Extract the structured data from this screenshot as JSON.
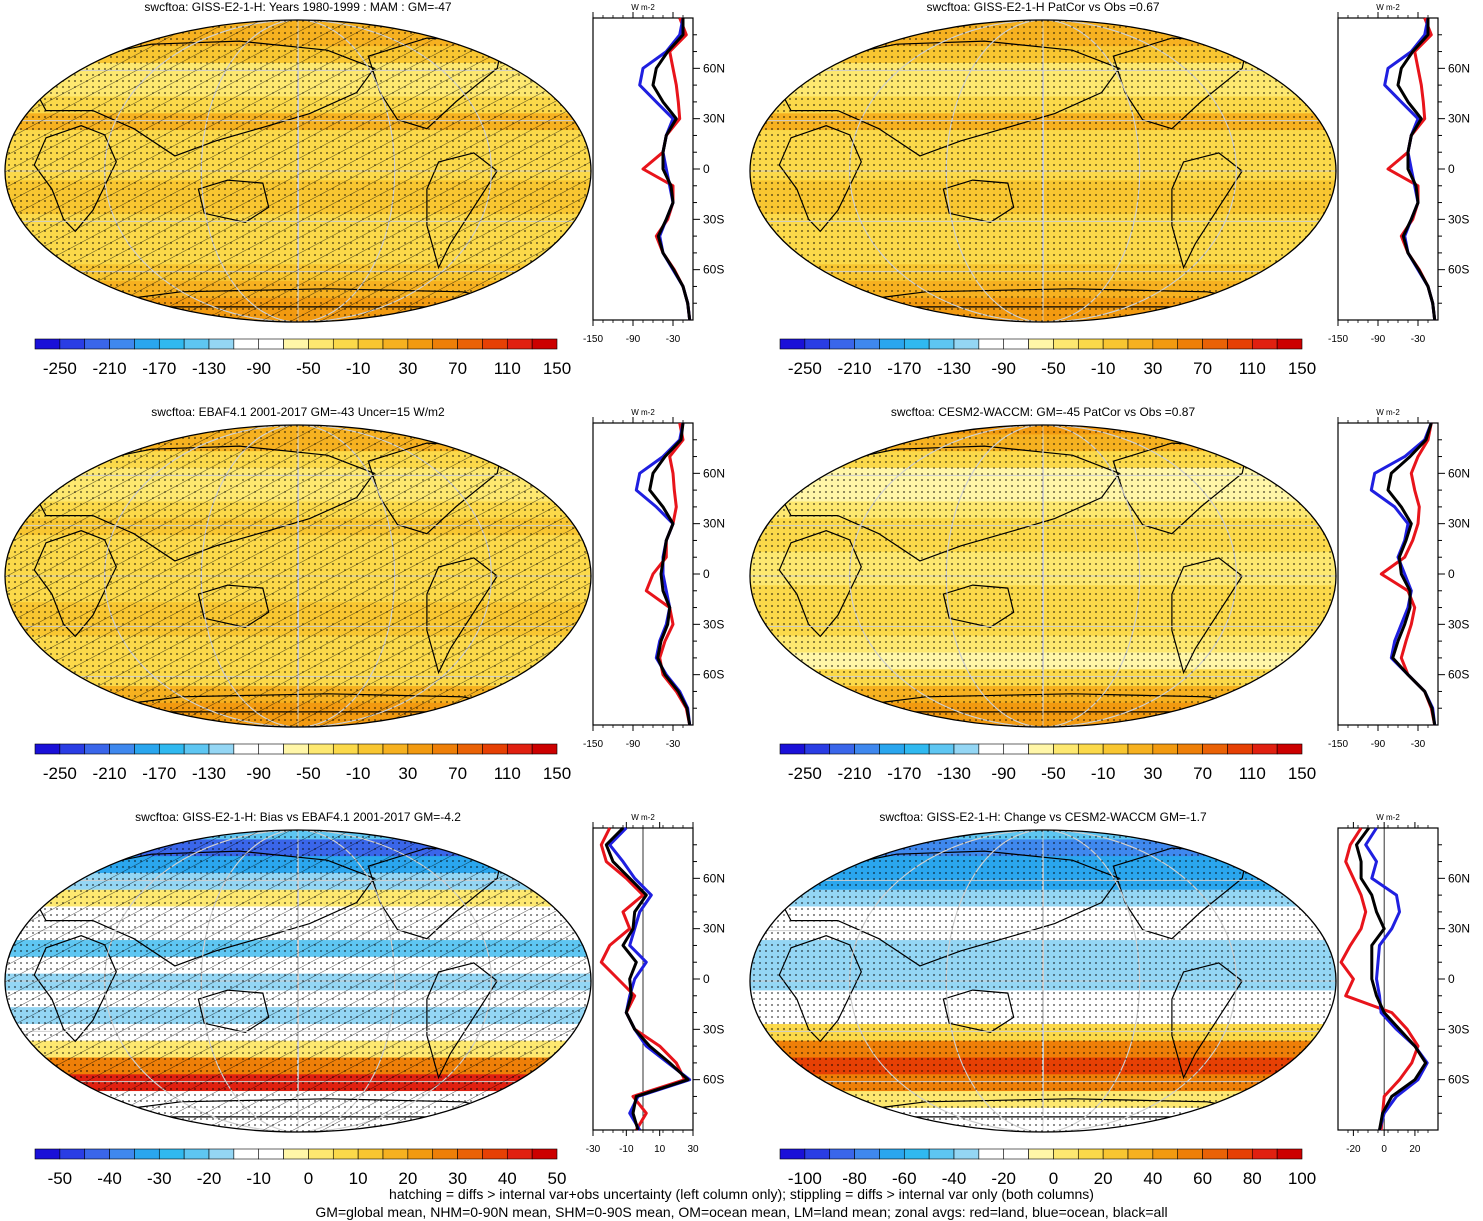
{
  "footer": {
    "line1": "hatching = diffs > internal var+obs uncertainty (left column only); stippling = diffs > internal var only (both columns)",
    "line2": "GM=global mean, NHM=0-90N mean, SHM=0-90S mean, OM=ocean mean, LM=land mean; zonal avgs: red=land, blue=ocean, black=all"
  },
  "colors": {
    "land": "#e8141b",
    "ocean": "#1f1fe0",
    "all": "#000000"
  },
  "chart_data": [
    {
      "type": "heatmap",
      "title": "swcftoa: GISS-E2-1-H: Years 1980-1999 : MAM : GM=-47",
      "hatched": true,
      "lat_ticks": [
        "60N",
        "30N",
        "0",
        "30S",
        "60S"
      ],
      "colorbar": {
        "labels": [
          "-250",
          "-210",
          "-170",
          "-130",
          "-90",
          "-50",
          "-10",
          "30",
          "70",
          "110",
          "150"
        ],
        "colors": [
          "#1a10d8",
          "#2a3de4",
          "#3a66ea",
          "#3f88ee",
          "#2aa6ee",
          "#30b9f0",
          "#5ec6f2",
          "#94d6f4",
          "#ffffff",
          "#ffffff",
          "#fff6a8",
          "#fde870",
          "#fbd94a",
          "#f8c631",
          "#f6b120",
          "#f29a10",
          "#ee7f08",
          "#ea6206",
          "#e64004",
          "#e02010",
          "#cc0000"
        ]
      },
      "zonal": {
        "unit": "W m-2",
        "x_ticks": [
          "-150",
          "-90",
          "-30"
        ],
        "xlim": [
          -150,
          0
        ],
        "lat": [
          -90,
          -80,
          -70,
          -60,
          -50,
          -40,
          -30,
          -20,
          -10,
          0,
          10,
          20,
          30,
          40,
          50,
          60,
          70,
          80,
          90
        ],
        "land": [
          -5,
          -8,
          -15,
          -28,
          -45,
          -55,
          -38,
          -30,
          -30,
          -75,
          -45,
          -40,
          -20,
          -22,
          -25,
          -30,
          -35,
          -10,
          -20
        ],
        "ocean": [
          -5,
          -8,
          -15,
          -30,
          -45,
          -50,
          -40,
          -30,
          -35,
          -40,
          -45,
          -40,
          -30,
          -55,
          -80,
          -75,
          -40,
          -20,
          -15
        ],
        "all": [
          -5,
          -8,
          -15,
          -29,
          -45,
          -52,
          -40,
          -30,
          -33,
          -45,
          -45,
          -40,
          -25,
          -45,
          -60,
          -55,
          -38,
          -15,
          -15
        ]
      }
    },
    {
      "type": "heatmap",
      "title": "swcftoa: GISS-E2-1-H PatCor vs Obs =0.67",
      "hatched": false,
      "lat_ticks": [
        "60N",
        "30N",
        "0",
        "30S",
        "60S"
      ],
      "colorbar": {
        "labels": [
          "-250",
          "-210",
          "-170",
          "-130",
          "-90",
          "-50",
          "-10",
          "30",
          "70",
          "110",
          "150"
        ],
        "colors": [
          "#1a10d8",
          "#2a3de4",
          "#3a66ea",
          "#3f88ee",
          "#2aa6ee",
          "#30b9f0",
          "#5ec6f2",
          "#94d6f4",
          "#ffffff",
          "#ffffff",
          "#fff6a8",
          "#fde870",
          "#fbd94a",
          "#f8c631",
          "#f6b120",
          "#f29a10",
          "#ee7f08",
          "#ea6206",
          "#e64004",
          "#e02010",
          "#cc0000"
        ]
      },
      "zonal": {
        "unit": "W m-2",
        "x_ticks": [
          "-150",
          "-90",
          "-30"
        ],
        "xlim": [
          -150,
          0
        ],
        "lat": [
          -90,
          -80,
          -70,
          -60,
          -50,
          -40,
          -30,
          -20,
          -10,
          0,
          10,
          20,
          30,
          40,
          50,
          60,
          70,
          80,
          90
        ],
        "land": [
          -5,
          -8,
          -15,
          -28,
          -45,
          -55,
          -38,
          -30,
          -30,
          -75,
          -45,
          -40,
          -20,
          -22,
          -25,
          -30,
          -35,
          -10,
          -20
        ],
        "ocean": [
          -5,
          -8,
          -15,
          -30,
          -45,
          -50,
          -40,
          -30,
          -35,
          -40,
          -45,
          -40,
          -30,
          -55,
          -80,
          -75,
          -40,
          -20,
          -15
        ],
        "all": [
          -5,
          -8,
          -15,
          -29,
          -45,
          -52,
          -40,
          -30,
          -33,
          -45,
          -45,
          -40,
          -25,
          -45,
          -60,
          -55,
          -38,
          -15,
          -15
        ]
      }
    },
    {
      "type": "heatmap",
      "title": "swcftoa: EBAF4.1 2001-2017 GM=-43 Uncer=15 W/m2",
      "hatched": true,
      "lat_ticks": [
        "60N",
        "30N",
        "0",
        "30S",
        "60S"
      ],
      "colorbar": {
        "labels": [
          "-250",
          "-210",
          "-170",
          "-130",
          "-90",
          "-50",
          "-10",
          "30",
          "70",
          "110",
          "150"
        ],
        "colors": [
          "#1a10d8",
          "#2a3de4",
          "#3a66ea",
          "#3f88ee",
          "#2aa6ee",
          "#30b9f0",
          "#5ec6f2",
          "#94d6f4",
          "#ffffff",
          "#ffffff",
          "#fff6a8",
          "#fde870",
          "#fbd94a",
          "#f8c631",
          "#f6b120",
          "#f29a10",
          "#ee7f08",
          "#ea6206",
          "#e64004",
          "#e02010",
          "#cc0000"
        ]
      },
      "zonal": {
        "unit": "W m-2",
        "x_ticks": [
          "-150",
          "-90",
          "-30"
        ],
        "xlim": [
          -150,
          0
        ],
        "lat": [
          -90,
          -80,
          -70,
          -60,
          -50,
          -40,
          -30,
          -20,
          -10,
          0,
          10,
          20,
          30,
          40,
          50,
          60,
          70,
          80,
          90
        ],
        "land": [
          -5,
          -10,
          -25,
          -45,
          -50,
          -42,
          -30,
          -35,
          -70,
          -60,
          -40,
          -40,
          -30,
          -25,
          -28,
          -30,
          -35,
          -15,
          -20
        ],
        "ocean": [
          -5,
          -8,
          -20,
          -40,
          -55,
          -50,
          -40,
          -35,
          -40,
          -45,
          -45,
          -40,
          -30,
          -55,
          -85,
          -80,
          -45,
          -20,
          -15
        ],
        "all": [
          -5,
          -9,
          -22,
          -42,
          -53,
          -48,
          -38,
          -35,
          -45,
          -48,
          -44,
          -40,
          -30,
          -45,
          -65,
          -60,
          -42,
          -18,
          -15
        ]
      }
    },
    {
      "type": "heatmap",
      "title": "swcftoa: CESM2-WACCM: GM=-45 PatCor vs Obs =0.87",
      "hatched": false,
      "lat_ticks": [
        "60N",
        "30N",
        "0",
        "30S",
        "60S"
      ],
      "colorbar": {
        "labels": [
          "-250",
          "-210",
          "-170",
          "-130",
          "-90",
          "-50",
          "-10",
          "30",
          "70",
          "110",
          "150"
        ],
        "colors": [
          "#1a10d8",
          "#2a3de4",
          "#3a66ea",
          "#3f88ee",
          "#2aa6ee",
          "#30b9f0",
          "#5ec6f2",
          "#94d6f4",
          "#ffffff",
          "#ffffff",
          "#fff6a8",
          "#fde870",
          "#fbd94a",
          "#f8c631",
          "#f6b120",
          "#f29a10",
          "#ee7f08",
          "#ea6206",
          "#e64004",
          "#e02010",
          "#cc0000"
        ]
      },
      "zonal": {
        "unit": "W m-2",
        "x_ticks": [
          "-150",
          "-90",
          "-30"
        ],
        "xlim": [
          -150,
          0
        ],
        "lat": [
          -90,
          -80,
          -70,
          -60,
          -50,
          -40,
          -30,
          -20,
          -10,
          0,
          10,
          20,
          30,
          40,
          50,
          60,
          70,
          80,
          90
        ],
        "land": [
          -5,
          -10,
          -20,
          -45,
          -55,
          -48,
          -40,
          -35,
          -45,
          -85,
          -50,
          -38,
          -30,
          -28,
          -35,
          -40,
          -30,
          -15,
          -10
        ],
        "ocean": [
          -5,
          -8,
          -20,
          -45,
          -70,
          -65,
          -55,
          -45,
          -40,
          -50,
          -60,
          -50,
          -45,
          -65,
          -100,
          -95,
          -50,
          -20,
          -10
        ],
        "all": [
          -5,
          -9,
          -20,
          -45,
          -68,
          -60,
          -50,
          -42,
          -42,
          -55,
          -58,
          -48,
          -40,
          -55,
          -75,
          -70,
          -42,
          -18,
          -10
        ]
      }
    },
    {
      "type": "heatmap",
      "title": "swcftoa: GISS-E2-1-H: Bias vs EBAF4.1 2001-2017 GM=-4.2",
      "hatched": true,
      "lat_ticks": [
        "60N",
        "30N",
        "0",
        "30S",
        "60S"
      ],
      "colorbar": {
        "labels": [
          "-50",
          "-40",
          "-30",
          "-20",
          "-10",
          "0",
          "10",
          "20",
          "30",
          "40",
          "50"
        ],
        "colors": [
          "#1a10d8",
          "#2a3de4",
          "#3a66ea",
          "#3f88ee",
          "#2aa6ee",
          "#30b9f0",
          "#5ec6f2",
          "#94d6f4",
          "#ffffff",
          "#ffffff",
          "#fff6a8",
          "#fde870",
          "#fbd94a",
          "#f8c631",
          "#f6b120",
          "#f29a10",
          "#ee7f08",
          "#ea6206",
          "#e64004",
          "#e02010",
          "#cc0000"
        ]
      },
      "zonal": {
        "unit": "W m-2",
        "x_ticks": [
          "-30",
          "-10",
          "10",
          "30"
        ],
        "xlim": [
          -30,
          30
        ],
        "lat": [
          -90,
          -80,
          -70,
          -60,
          -50,
          -40,
          -30,
          -20,
          -10,
          0,
          10,
          20,
          30,
          40,
          50,
          60,
          70,
          80,
          90
        ],
        "land": [
          -4,
          2,
          -6,
          25,
          20,
          10,
          -5,
          -10,
          -5,
          -15,
          -25,
          -20,
          -8,
          -12,
          0,
          -10,
          -22,
          -25,
          -20
        ],
        "ocean": [
          -2,
          -8,
          -3,
          28,
          15,
          2,
          -5,
          -10,
          -8,
          -5,
          2,
          -8,
          -5,
          -2,
          5,
          -5,
          -12,
          -20,
          -10
        ],
        "all": [
          -3,
          -6,
          -4,
          27,
          16,
          4,
          -5,
          -10,
          -7,
          -8,
          -4,
          -12,
          -6,
          -5,
          2,
          -8,
          -18,
          -22,
          -12
        ]
      }
    },
    {
      "type": "heatmap",
      "title": "swcftoa: GISS-E2-1-H: Change vs CESM2-WACCM GM=-1.7",
      "hatched": false,
      "lat_ticks": [
        "60N",
        "30N",
        "0",
        "30S",
        "60S"
      ],
      "colorbar": {
        "labels": [
          "-100",
          "-80",
          "-60",
          "-40",
          "-20",
          "0",
          "20",
          "40",
          "60",
          "80",
          "100"
        ],
        "colors": [
          "#1a10d8",
          "#2a3de4",
          "#3a66ea",
          "#3f88ee",
          "#2aa6ee",
          "#30b9f0",
          "#5ec6f2",
          "#94d6f4",
          "#ffffff",
          "#ffffff",
          "#fff6a8",
          "#fde870",
          "#fbd94a",
          "#f8c631",
          "#f6b120",
          "#f29a10",
          "#ee7f08",
          "#ea6206",
          "#e64004",
          "#e02010",
          "#cc0000"
        ]
      },
      "zonal": {
        "unit": "W m-2",
        "x_ticks": [
          "-20",
          "0",
          "20"
        ],
        "xlim": [
          -30,
          35
        ],
        "lat": [
          -90,
          -80,
          -70,
          -60,
          -50,
          -40,
          -30,
          -20,
          -10,
          0,
          10,
          20,
          30,
          40,
          50,
          60,
          70,
          80,
          90
        ],
        "land": [
          -2,
          -1,
          0,
          10,
          18,
          22,
          15,
          5,
          -25,
          -20,
          -28,
          -22,
          -15,
          -12,
          -15,
          -20,
          -25,
          -22,
          -15
        ],
        "ocean": [
          -3,
          0,
          8,
          22,
          28,
          20,
          8,
          -2,
          -3,
          -5,
          -4,
          -3,
          5,
          10,
          8,
          -8,
          -5,
          -12,
          -5
        ],
        "all": [
          -3,
          -1,
          5,
          20,
          27,
          20,
          10,
          0,
          -5,
          -8,
          -8,
          -8,
          0,
          -5,
          -8,
          -15,
          -15,
          -18,
          -10
        ]
      }
    }
  ]
}
